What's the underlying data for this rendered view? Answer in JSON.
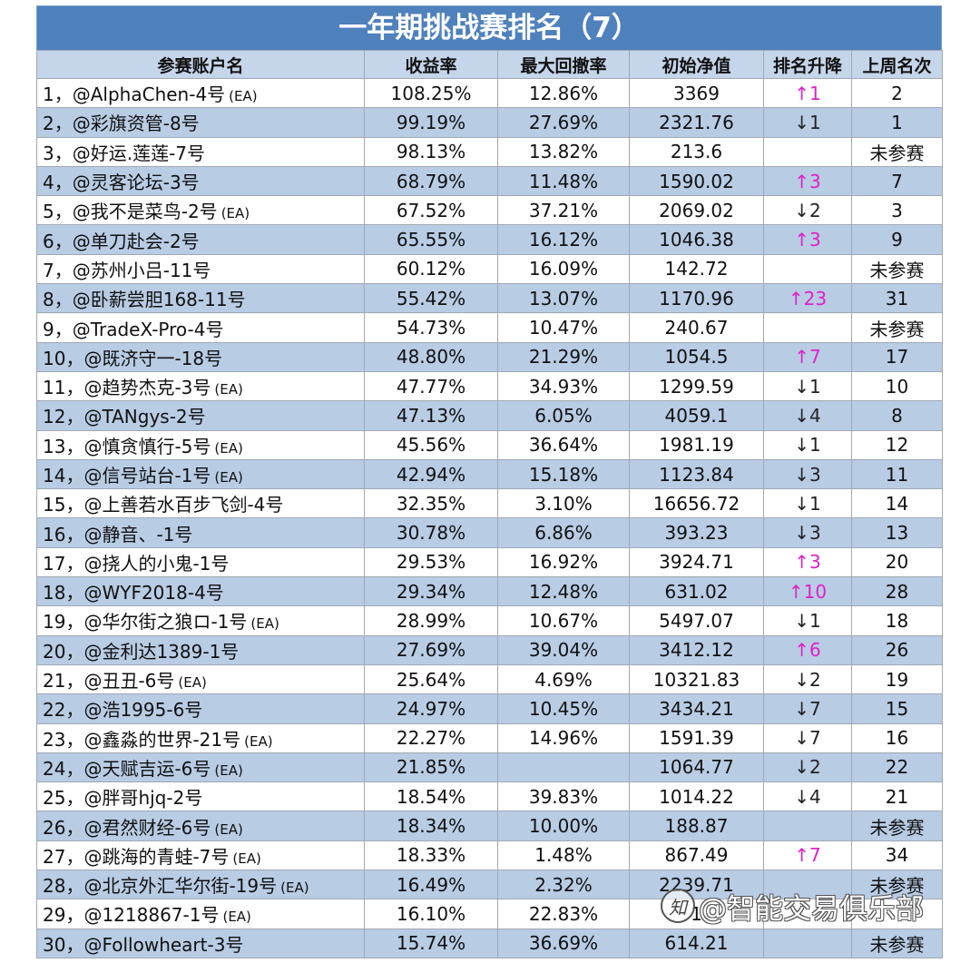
{
  "title": "一年期挑战赛排名（7）",
  "headers": [
    "参赛账户名",
    "收益率",
    "最大回撤率",
    "初始净值",
    "排名升降",
    "上周名次"
  ],
  "rows": [
    {
      "rank": "1，",
      "name": "@AlphaChen-4号",
      "ea": "(EA)",
      "return": "108.25%",
      "drawdown": "12.86%",
      "nav": "3369",
      "change": "↑1",
      "dir": "up",
      "last": "2"
    },
    {
      "rank": "2，",
      "name": "@彩旗资管-8号",
      "ea": "",
      "return": "99.19%",
      "drawdown": "27.69%",
      "nav": "2321.76",
      "change": "↓1",
      "dir": "down",
      "last": "1"
    },
    {
      "rank": "3，",
      "name": "@好运.莲莲-7号",
      "ea": "",
      "return": "98.13%",
      "drawdown": "13.82%",
      "nav": "213.6",
      "change": "",
      "dir": "",
      "last": "未参赛"
    },
    {
      "rank": "4，",
      "name": "@灵客论坛-3号",
      "ea": "",
      "return": "68.79%",
      "drawdown": "11.48%",
      "nav": "1590.02",
      "change": "↑3",
      "dir": "up",
      "last": "7"
    },
    {
      "rank": "5，",
      "name": "@我不是菜鸟-2号",
      "ea": "(EA)",
      "return": "67.52%",
      "drawdown": "37.21%",
      "nav": "2069.02",
      "change": "↓2",
      "dir": "down",
      "last": "3"
    },
    {
      "rank": "6，",
      "name": "@单刀赴会-2号",
      "ea": "",
      "return": "65.55%",
      "drawdown": "16.12%",
      "nav": "1046.38",
      "change": "↑3",
      "dir": "up",
      "last": "9"
    },
    {
      "rank": "7，",
      "name": "@苏州小吕-11号",
      "ea": "",
      "return": "60.12%",
      "drawdown": "16.09%",
      "nav": "142.72",
      "change": "",
      "dir": "",
      "last": "未参赛"
    },
    {
      "rank": "8，",
      "name": "@卧薪尝胆168-11号",
      "ea": "",
      "return": "55.42%",
      "drawdown": "13.07%",
      "nav": "1170.96",
      "change": "↑23",
      "dir": "up",
      "last": "31"
    },
    {
      "rank": "9，",
      "name": "@TradeX-Pro-4号",
      "ea": "",
      "return": "54.73%",
      "drawdown": "10.47%",
      "nav": "240.67",
      "change": "",
      "dir": "",
      "last": "未参赛"
    },
    {
      "rank": "10，",
      "name": "@既济守一-18号",
      "ea": "",
      "return": "48.80%",
      "drawdown": "21.29%",
      "nav": "1054.5",
      "change": "↑7",
      "dir": "up",
      "last": "17"
    },
    {
      "rank": "11，",
      "name": "@趋势杰克-3号",
      "ea": "(EA)",
      "return": "47.77%",
      "drawdown": "34.93%",
      "nav": "1299.59",
      "change": "↓1",
      "dir": "down",
      "last": "10"
    },
    {
      "rank": "12，",
      "name": "@TANgys-2号",
      "ea": "",
      "return": "47.13%",
      "drawdown": "6.05%",
      "nav": "4059.1",
      "change": "↓4",
      "dir": "down",
      "last": "8"
    },
    {
      "rank": "13，",
      "name": "@慎贪慎行-5号",
      "ea": "(EA)",
      "return": "45.56%",
      "drawdown": "36.64%",
      "nav": "1981.19",
      "change": "↓1",
      "dir": "down",
      "last": "12"
    },
    {
      "rank": "14，",
      "name": "@信号站台-1号",
      "ea": "(EA)",
      "return": "42.94%",
      "drawdown": "15.18%",
      "nav": "1123.84",
      "change": "↓3",
      "dir": "down",
      "last": "11"
    },
    {
      "rank": "15，",
      "name": "@上善若水百步飞剑-4号",
      "ea": "",
      "return": "32.35%",
      "drawdown": "3.10%",
      "nav": "16656.72",
      "change": "↓1",
      "dir": "down",
      "last": "14"
    },
    {
      "rank": "16，",
      "name": "@静音、-1号",
      "ea": "",
      "return": "30.78%",
      "drawdown": "6.86%",
      "nav": "393.23",
      "change": "↓3",
      "dir": "down",
      "last": "13"
    },
    {
      "rank": "17，",
      "name": "@挠人的小鬼-1号",
      "ea": "",
      "return": "29.53%",
      "drawdown": "16.92%",
      "nav": "3924.71",
      "change": "↑3",
      "dir": "up",
      "last": "20"
    },
    {
      "rank": "18，",
      "name": "@WYF2018-4号",
      "ea": "",
      "return": "29.34%",
      "drawdown": "12.48%",
      "nav": "631.02",
      "change": "↑10",
      "dir": "up",
      "last": "28"
    },
    {
      "rank": "19，",
      "name": "@华尔街之狼ロ-1号",
      "ea": "(EA)",
      "return": "28.99%",
      "drawdown": "10.67%",
      "nav": "5497.07",
      "change": "↓1",
      "dir": "down",
      "last": "18"
    },
    {
      "rank": "20，",
      "name": "@金利达1389-1号",
      "ea": "",
      "return": "27.69%",
      "drawdown": "39.04%",
      "nav": "3412.12",
      "change": "↑6",
      "dir": "up",
      "last": "26"
    },
    {
      "rank": "21，",
      "name": "@丑丑-6号",
      "ea": "(EA)",
      "return": "25.64%",
      "drawdown": "4.69%",
      "nav": "10321.83",
      "change": "↓2",
      "dir": "down",
      "last": "19"
    },
    {
      "rank": "22，",
      "name": "@浩1995-6号",
      "ea": "",
      "return": "24.97%",
      "drawdown": "10.45%",
      "nav": "3434.21",
      "change": "↓7",
      "dir": "down",
      "last": "15"
    },
    {
      "rank": "23，",
      "name": "@鑫淼的世界-21号",
      "ea": "(EA)",
      "return": "22.27%",
      "drawdown": "14.96%",
      "nav": "1591.39",
      "change": "↓7",
      "dir": "down",
      "last": "16"
    },
    {
      "rank": "24，",
      "name": "@天赋吉运-6号",
      "ea": "(EA)",
      "return": "21.85%",
      "drawdown": "",
      "nav": "1064.77",
      "change": "↓2",
      "dir": "down",
      "last": "22"
    },
    {
      "rank": "25，",
      "name": "@胖哥hjq-2号",
      "ea": "",
      "return": "18.54%",
      "drawdown": "39.83%",
      "nav": "1014.22",
      "change": "↓4",
      "dir": "down",
      "last": "21"
    },
    {
      "rank": "26，",
      "name": "@君然财经-6号",
      "ea": "(EA)",
      "return": "18.34%",
      "drawdown": "10.00%",
      "nav": "188.87",
      "change": "",
      "dir": "",
      "last": "未参赛"
    },
    {
      "rank": "27，",
      "name": "@跳海的青蛙-7号",
      "ea": "(EA)",
      "return": "18.33%",
      "drawdown": "1.48%",
      "nav": "867.49",
      "change": "↑7",
      "dir": "up",
      "last": "34"
    },
    {
      "rank": "28，",
      "name": "@北京外汇华尔街-19号",
      "ea": "(EA)",
      "return": "16.49%",
      "drawdown": "2.32%",
      "nav": "2239.71",
      "change": "",
      "dir": "",
      "last": "未参赛"
    },
    {
      "rank": "29，",
      "name": "@1218867-1号",
      "ea": "(EA)",
      "return": "16.10%",
      "drawdown": "22.83%",
      "nav": "1",
      "change": "",
      "dir": "",
      "last": ""
    },
    {
      "rank": "30，",
      "name": "@Followheart-3号",
      "ea": "",
      "return": "15.74%",
      "drawdown": "36.69%",
      "nav": "614.21",
      "change": "",
      "dir": "",
      "last": "未参赛"
    }
  ],
  "watermark": {
    "text": "@智能交易俱乐部",
    "icon": "zhihu-logo-icon"
  },
  "colors": {
    "title_bg": "#4f81bd",
    "header_bg": "#c5d5ea",
    "band_bg": "#b8cce4",
    "up": "#e020c8"
  }
}
